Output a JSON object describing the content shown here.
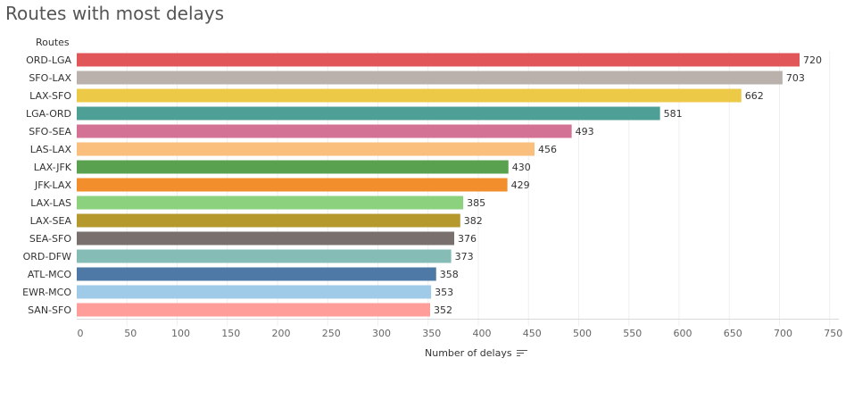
{
  "title": "Routes with most delays",
  "icons": {
    "sort": "sort-descending-icon"
  },
  "chart_data": {
    "type": "bar",
    "orientation": "horizontal",
    "row_header": "Routes",
    "xlabel": "Number of delays",
    "xlim": [
      0,
      750
    ],
    "xticks": [
      0,
      50,
      100,
      150,
      200,
      250,
      300,
      350,
      400,
      450,
      500,
      550,
      600,
      650,
      700,
      750
    ],
    "grid": true,
    "categories": [
      "ORD-LGA",
      "SFO-LAX",
      "LAX-SFO",
      "LGA-ORD",
      "SFO-SEA",
      "LAS-LAX",
      "LAX-JFK",
      "JFK-LAX",
      "LAX-LAS",
      "LAX-SEA",
      "SEA-SFO",
      "ORD-DFW",
      "ATL-MCO",
      "EWR-MCO",
      "SAN-SFO"
    ],
    "values": [
      720,
      703,
      662,
      581,
      493,
      456,
      430,
      429,
      385,
      382,
      376,
      373,
      358,
      353,
      352
    ],
    "colors": [
      "#e15759",
      "#bab0ac",
      "#edc948",
      "#4e9f96",
      "#d37295",
      "#fabe7d",
      "#59a14f",
      "#f28e2b",
      "#8cd17d",
      "#b6992d",
      "#79706e",
      "#86bcb6",
      "#4e79a7",
      "#a0cbe8",
      "#ff9d9a"
    ]
  }
}
